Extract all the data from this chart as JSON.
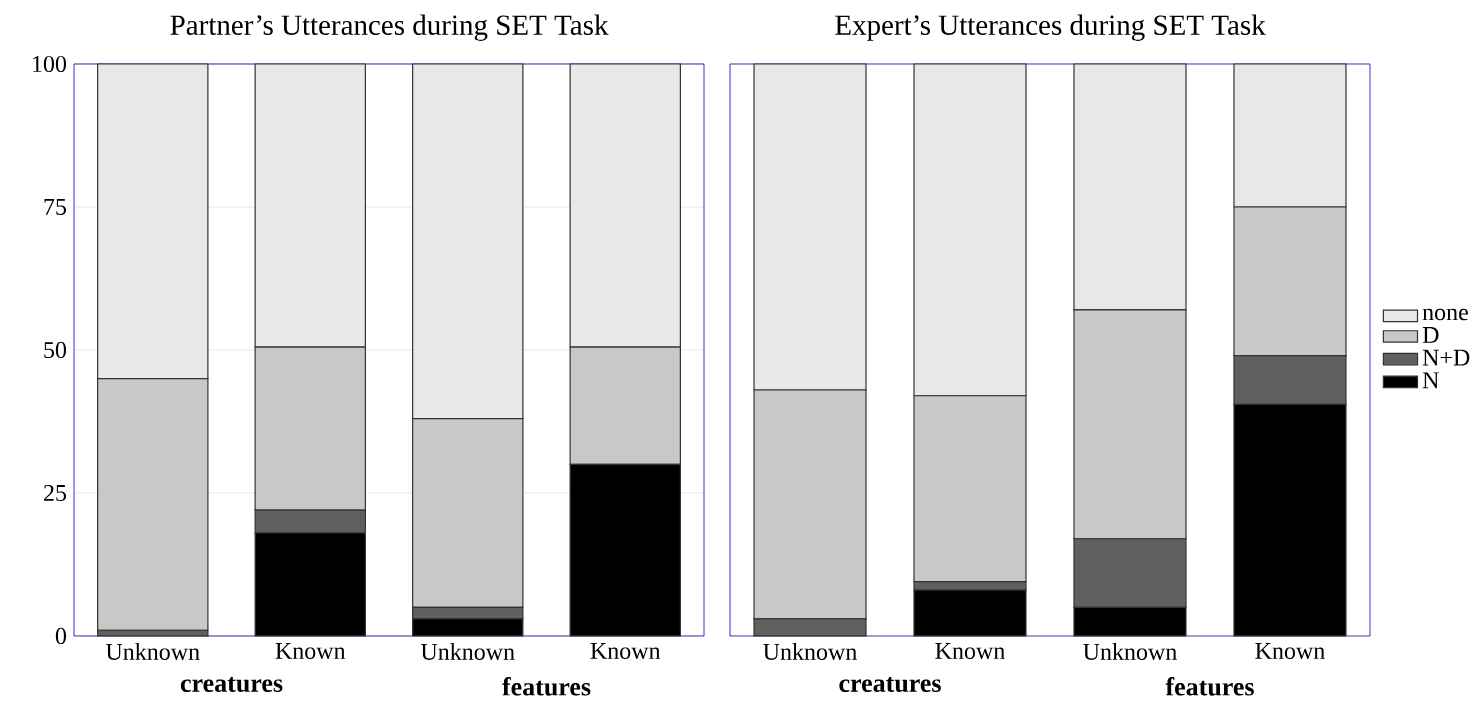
{
  "chart_data": [
    {
      "type": "bar",
      "title": "Partner’s Utterances during SET Task",
      "categories": [
        "Unknown",
        "Known",
        "Unknown",
        "Known"
      ],
      "stacked": true,
      "ylim": [
        0,
        100
      ],
      "yticks": [
        0,
        25,
        50,
        75,
        100
      ],
      "grid": "y",
      "legend": false,
      "annotations": [
        "creatures",
        "features"
      ],
      "series": [
        {
          "color": "#000000",
          "values": [
            0,
            18,
            3,
            30
          ]
        },
        {
          "color": "#606060",
          "values": [
            1,
            4,
            2,
            0
          ]
        },
        {
          "color": "#c8c8c8",
          "values": [
            44,
            28.5,
            33,
            20.5
          ]
        },
        {
          "color": "#e8e8e8",
          "values": [
            55,
            49.5,
            62,
            49.5
          ]
        }
      ]
    },
    {
      "type": "bar",
      "title": "Expert’s Utterances during SET Task",
      "categories": [
        "Unknown",
        "Known",
        "Unknown",
        "Known"
      ],
      "stacked": true,
      "ylim": [
        0,
        100
      ],
      "yticks": [
        0,
        25,
        50,
        75,
        100
      ],
      "tick_labels": "x",
      "legend": "right",
      "annotations": [
        "creatures",
        "features"
      ],
      "series": [
        {
          "name": "N",
          "color": "#000000",
          "values": [
            0,
            8,
            5,
            40.5
          ]
        },
        {
          "name": "N+D",
          "color": "#606060",
          "values": [
            3,
            1.5,
            12,
            8.5
          ]
        },
        {
          "name": "D",
          "color": "#c8c8c8",
          "values": [
            40,
            32.5,
            40,
            26
          ]
        },
        {
          "name": "none",
          "color": "#e8e8e8",
          "values": [
            57,
            58,
            43,
            25
          ]
        }
      ]
    }
  ]
}
